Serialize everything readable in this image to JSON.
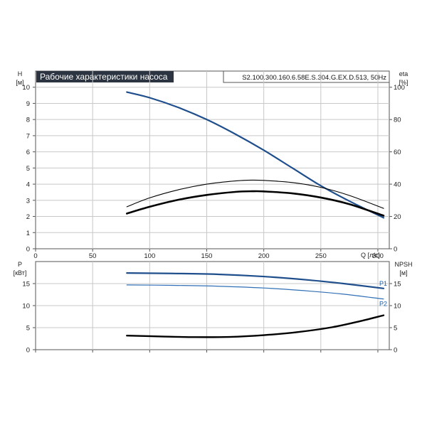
{
  "header": {
    "title": "Рабочие характеристики насоса",
    "model": "S2.100.300.160.6.58E.S.304.G.EX.D.513, 50Hz"
  },
  "colors": {
    "title_bg": "#2b3440",
    "head_curve": "#1f4e8c",
    "p1_curve": "#1f4e8c",
    "p2_curve": "#2f6fb5",
    "black_curve": "#000000",
    "grid": "#c8c8c8"
  },
  "chart_data": [
    {
      "type": "line",
      "ylabel": "H",
      "yunit": "[м]",
      "y2label": "eta",
      "y2unit": "[%]",
      "xlabel": "Q [л/с]",
      "xlim": [
        0,
        310
      ],
      "ylim": [
        0,
        11
      ],
      "y2lim": [
        0,
        110
      ],
      "grid": true,
      "x_ticks": [
        0,
        50,
        100,
        150,
        200,
        250,
        300
      ],
      "y_ticks": [
        0,
        1,
        2,
        3,
        4,
        5,
        6,
        7,
        8,
        9,
        10
      ],
      "y2_ticks": [
        0,
        20,
        40,
        60,
        80,
        100
      ],
      "series": [
        {
          "axis": "left",
          "style": "head",
          "x": [
            80,
            100,
            125,
            150,
            175,
            200,
            225,
            250,
            275,
            305
          ],
          "y": [
            9.7,
            9.35,
            8.75,
            8.0,
            7.1,
            6.1,
            5.0,
            3.9,
            2.95,
            1.92
          ]
        },
        {
          "axis": "right",
          "style": "thin",
          "x": [
            80,
            100,
            125,
            150,
            175,
            190,
            200,
            225,
            250,
            275,
            305
          ],
          "y": [
            26,
            31.5,
            36.5,
            40,
            42,
            42.5,
            42.3,
            41,
            38,
            33,
            25
          ]
        },
        {
          "axis": "left",
          "style": "thick",
          "x": [
            80,
            100,
            125,
            150,
            175,
            190,
            200,
            225,
            250,
            275,
            305
          ],
          "y": [
            2.18,
            2.6,
            3.03,
            3.33,
            3.52,
            3.56,
            3.55,
            3.43,
            3.17,
            2.76,
            2.05
          ]
        }
      ]
    },
    {
      "type": "line",
      "ylabel": "P",
      "yunit": "[кВт]",
      "y2label": "NPSH",
      "y2unit": "[м]",
      "xlim": [
        0,
        310
      ],
      "ylim": [
        0,
        20
      ],
      "y2lim": [
        0,
        20
      ],
      "grid": true,
      "x_ticks": [
        0,
        50,
        100,
        150,
        200,
        250,
        300
      ],
      "y_ticks": [
        0,
        5,
        10,
        15
      ],
      "y2_ticks": [
        0,
        5,
        10,
        15
      ],
      "series": [
        {
          "name": "P1",
          "axis": "left",
          "style": "p1",
          "x": [
            80,
            120,
            160,
            200,
            240,
            270,
            305
          ],
          "y": [
            17.4,
            17.3,
            17.1,
            16.6,
            15.8,
            15.0,
            13.9
          ]
        },
        {
          "name": "P2",
          "axis": "left",
          "style": "p2",
          "x": [
            80,
            120,
            160,
            200,
            240,
            270,
            305
          ],
          "y": [
            14.7,
            14.6,
            14.4,
            14.0,
            13.3,
            12.6,
            11.5
          ]
        },
        {
          "axis": "right",
          "style": "npsh",
          "x": [
            80,
            110,
            140,
            170,
            200,
            230,
            260,
            285,
            305
          ],
          "y": [
            3.2,
            3.0,
            2.85,
            2.9,
            3.3,
            4.0,
            5.1,
            6.5,
            7.8
          ]
        }
      ]
    }
  ]
}
